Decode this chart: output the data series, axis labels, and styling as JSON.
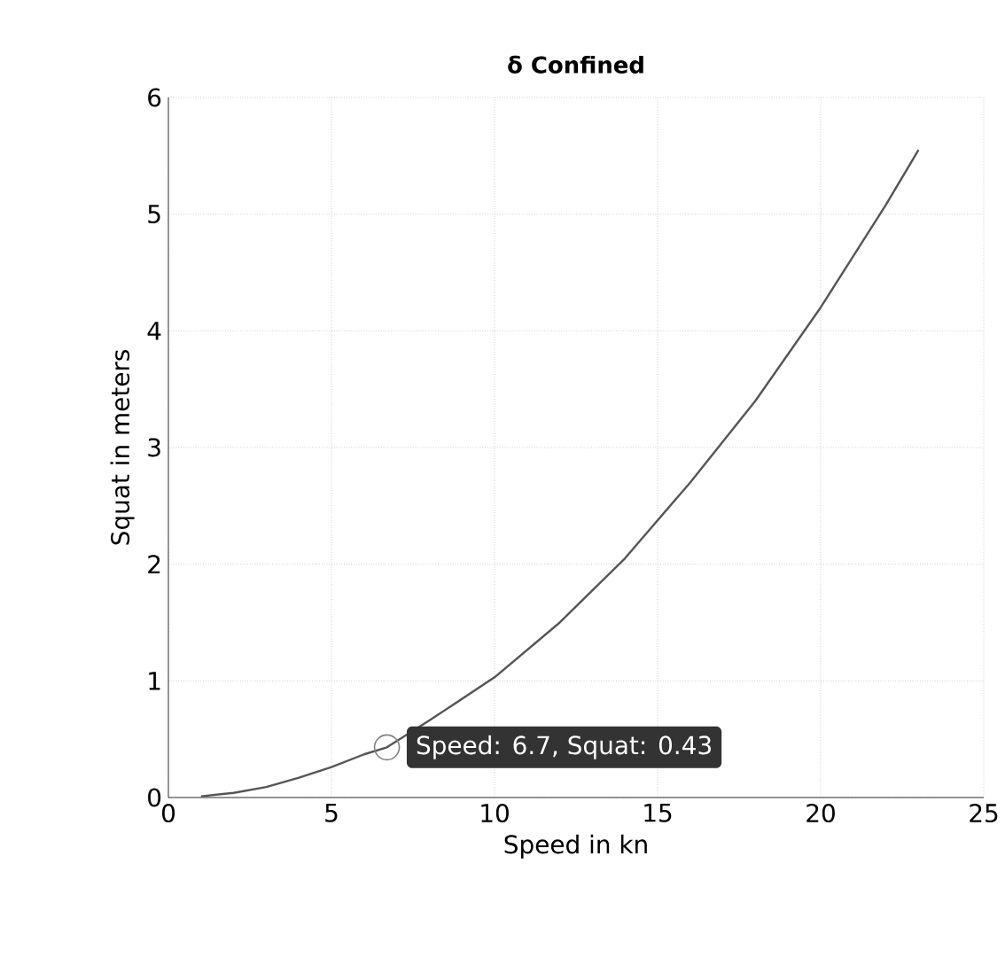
{
  "chart_data": {
    "type": "line",
    "title": "δ Confined",
    "xlabel": "Speed in kn",
    "ylabel": "Squat in meters",
    "x": [
      1,
      2,
      3,
      4,
      5,
      6,
      6.7,
      8,
      10,
      12,
      14,
      16,
      18,
      20,
      22,
      23
    ],
    "series": [
      {
        "color": "#555555",
        "values": [
          0.01,
          0.04,
          0.09,
          0.17,
          0.26,
          0.37,
          0.43,
          0.66,
          1.03,
          1.5,
          2.05,
          2.7,
          3.4,
          4.2,
          5.08,
          5.55
        ]
      }
    ],
    "xlim": [
      0,
      25
    ],
    "ylim": [
      0,
      6
    ],
    "xticks": [
      0,
      5,
      10,
      15,
      20,
      25
    ],
    "yticks": [
      0,
      1,
      2,
      3,
      4,
      5,
      6
    ],
    "grid": true,
    "marker": "none",
    "line_style": "solid",
    "annotations": [
      {
        "text": "Speed: 6.7, Squat: 0.43",
        "x": 6.7,
        "y": 0.43
      }
    ]
  }
}
